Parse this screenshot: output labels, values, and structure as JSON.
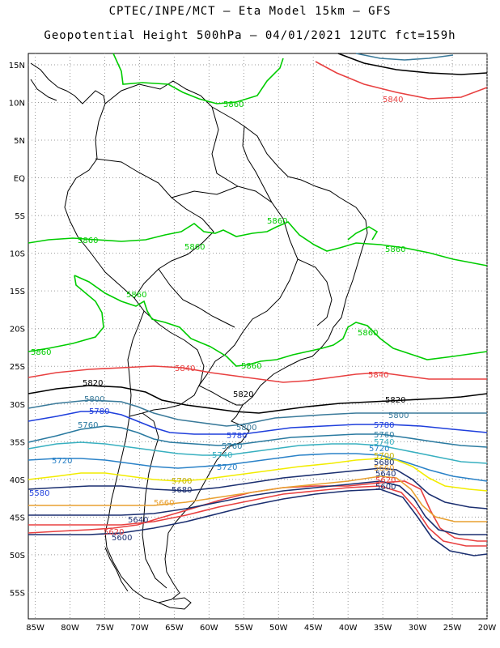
{
  "header": {
    "title_line1": "CPTEC/INPE/MCT –  Eta Model 15km – GFS",
    "title_line2": "Geopotential Height 500hPa – 04/01/2021 12UTC fct=159h"
  },
  "map": {
    "lat_labels": [
      "15N",
      "10N",
      "5N",
      "EQ",
      "5S",
      "10S",
      "15S",
      "20S",
      "25S",
      "30S",
      "35S",
      "40S",
      "45S",
      "50S",
      "55S"
    ],
    "lon_labels": [
      "85W",
      "80W",
      "75W",
      "70W",
      "65W",
      "60W",
      "55W",
      "50W",
      "45W",
      "40W",
      "35W",
      "30W",
      "25W",
      "20W"
    ],
    "lon_range": [
      -86,
      -20
    ],
    "lat_range": [
      -58.5,
      16.5
    ],
    "contours": [
      {
        "value": "5860",
        "color": "#00cc00",
        "labels": [
          "5860",
          "5860",
          "5860",
          "5860",
          "5860",
          "5860",
          "5860",
          "5860",
          "5860"
        ]
      },
      {
        "value": "5840",
        "color": "#e84040",
        "labels": [
          "5840",
          "5840",
          "5840"
        ]
      },
      {
        "value": "5820",
        "color": "#000000",
        "labels": [
          "5820",
          "5820",
          "5820"
        ]
      },
      {
        "value": "5800",
        "color": "#3a7a9a",
        "labels": [
          "5800",
          "5800",
          "5800"
        ]
      },
      {
        "value": "5780",
        "color": "#1f3fdc",
        "labels": [
          "5780",
          "5780",
          "5780"
        ]
      },
      {
        "value": "5760",
        "color": "#2a7aa0",
        "labels": [
          "5760",
          "5760",
          "5760"
        ]
      },
      {
        "value": "5740",
        "color": "#38b0c0",
        "labels": [
          "5740",
          "5740"
        ]
      },
      {
        "value": "5720",
        "color": "#2a82c8",
        "labels": [
          "5720",
          "5720",
          "5720"
        ]
      },
      {
        "value": "5700",
        "color": "#f2ec00",
        "labels": [
          "5700",
          "5700"
        ]
      },
      {
        "value": "5680",
        "color": "#1b2f70",
        "labels": [
          "5680",
          "5680"
        ]
      },
      {
        "value": "5660",
        "color": "#e8a030",
        "labels": [
          "5660",
          "5660"
        ]
      },
      {
        "value": "5640",
        "color": "#1b2f70",
        "labels": [
          "5640",
          "5640"
        ]
      },
      {
        "value": "5620",
        "color": "#e84040",
        "labels": [
          "5620",
          "5620"
        ]
      },
      {
        "value": "5600",
        "color": "#1b2f70",
        "labels": [
          "5600",
          "5600"
        ]
      },
      {
        "value": "5580",
        "color": "#1f3fdc",
        "labels": [
          "5580"
        ]
      }
    ]
  }
}
